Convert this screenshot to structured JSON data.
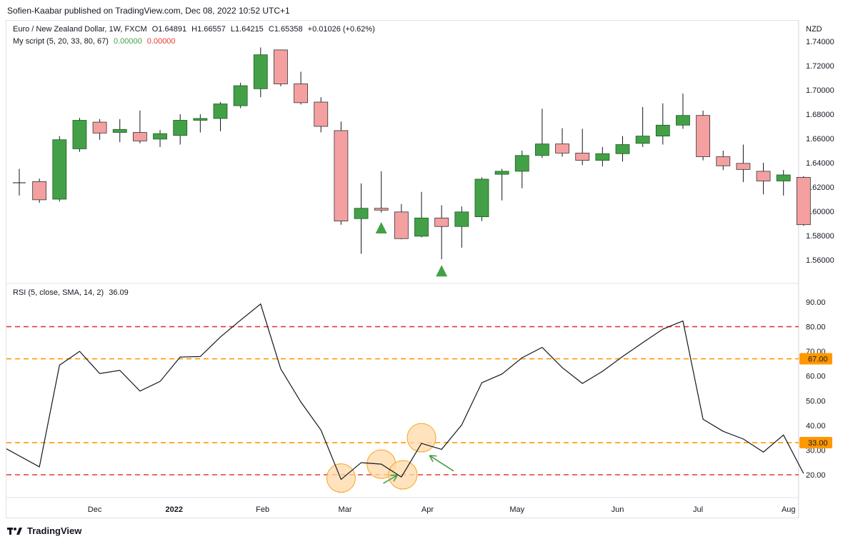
{
  "header": {
    "published": "Sofien-Kaabar published on TradingView.com, Dec 08, 2022 10:52 UTC+1"
  },
  "price_legend": {
    "symbol": "Euro / New Zealand Dollar, 1W, FXCM",
    "open": "O1.64891",
    "high": "H1.66557",
    "low": "L1.64215",
    "close": "C1.65358",
    "change": "+0.01026 (+0.62%)",
    "script": "My script (5, 20, 33, 80, 67)",
    "script_v1": "0.00000",
    "script_v2": "0.00000",
    "currency": "NZD"
  },
  "rsi_legend": {
    "label": "RSI (5, close, SMA, 14, 2)",
    "value": "36.09"
  },
  "footer": {
    "brand": "TradingView"
  },
  "colors": {
    "up": "#43a047",
    "down": "#f4a0a0",
    "up_border": "#1b5e20",
    "down_border": "#333333",
    "signal": "#43a047",
    "level_red": "#e53935",
    "level_orange": "#ff9800",
    "highlight_fill": "#fdd9a8",
    "highlight_stroke": "#f5a623"
  },
  "chart_data": [
    {
      "type": "candlestick",
      "title": "Euro / New Zealand Dollar, 1W, FXCM",
      "y_axis_side": "right",
      "ylim": [
        1.545,
        1.745
      ],
      "yticks": [
        "1.74000",
        "1.72000",
        "1.70000",
        "1.68000",
        "1.66000",
        "1.64000",
        "1.62000",
        "1.60000",
        "1.58000",
        "1.56000"
      ],
      "candles": [
        {
          "o": 1.6235,
          "h": 1.635,
          "l": 1.613,
          "c": 1.6235
        },
        {
          "o": 1.6245,
          "h": 1.627,
          "l": 1.607,
          "c": 1.6095
        },
        {
          "o": 1.61,
          "h": 1.662,
          "l": 1.608,
          "c": 1.659
        },
        {
          "o": 1.6515,
          "h": 1.677,
          "l": 1.649,
          "c": 1.675
        },
        {
          "o": 1.6735,
          "h": 1.676,
          "l": 1.659,
          "c": 1.6645
        },
        {
          "o": 1.665,
          "h": 1.676,
          "l": 1.657,
          "c": 1.6675
        },
        {
          "o": 1.665,
          "h": 1.683,
          "l": 1.656,
          "c": 1.658
        },
        {
          "o": 1.6595,
          "h": 1.667,
          "l": 1.653,
          "c": 1.664
        },
        {
          "o": 1.6625,
          "h": 1.68,
          "l": 1.655,
          "c": 1.675
        },
        {
          "o": 1.675,
          "h": 1.68,
          "l": 1.665,
          "c": 1.6765
        },
        {
          "o": 1.6765,
          "h": 1.69,
          "l": 1.666,
          "c": 1.6885
        },
        {
          "o": 1.687,
          "h": 1.706,
          "l": 1.685,
          "c": 1.7035
        },
        {
          "o": 1.701,
          "h": 1.735,
          "l": 1.694,
          "c": 1.729
        },
        {
          "o": 1.733,
          "h": 1.733,
          "l": 1.703,
          "c": 1.705
        },
        {
          "o": 1.705,
          "h": 1.715,
          "l": 1.688,
          "c": 1.6895
        },
        {
          "o": 1.69,
          "h": 1.694,
          "l": 1.665,
          "c": 1.67
        },
        {
          "o": 1.6665,
          "h": 1.674,
          "l": 1.589,
          "c": 1.592
        },
        {
          "o": 1.594,
          "h": 1.623,
          "l": 1.565,
          "c": 1.6025
        },
        {
          "o": 1.6025,
          "h": 1.633,
          "l": 1.599,
          "c": 1.601
        },
        {
          "o": 1.5995,
          "h": 1.606,
          "l": 1.577,
          "c": 1.5775
        },
        {
          "o": 1.5795,
          "h": 1.616,
          "l": 1.5785,
          "c": 1.5945
        },
        {
          "o": 1.5945,
          "h": 1.605,
          "l": 1.5605,
          "c": 1.5875
        },
        {
          "o": 1.5875,
          "h": 1.604,
          "l": 1.57,
          "c": 1.5995
        },
        {
          "o": 1.5955,
          "h": 1.628,
          "l": 1.592,
          "c": 1.6265
        },
        {
          "o": 1.6305,
          "h": 1.635,
          "l": 1.609,
          "c": 1.633
        },
        {
          "o": 1.633,
          "h": 1.65,
          "l": 1.619,
          "c": 1.646
        },
        {
          "o": 1.646,
          "h": 1.6845,
          "l": 1.644,
          "c": 1.6555
        },
        {
          "o": 1.6555,
          "h": 1.6685,
          "l": 1.645,
          "c": 1.648
        },
        {
          "o": 1.648,
          "h": 1.668,
          "l": 1.638,
          "c": 1.642
        },
        {
          "o": 1.642,
          "h": 1.653,
          "l": 1.637,
          "c": 1.6475
        },
        {
          "o": 1.6475,
          "h": 1.662,
          "l": 1.641,
          "c": 1.655
        },
        {
          "o": 1.656,
          "h": 1.686,
          "l": 1.653,
          "c": 1.662
        },
        {
          "o": 1.662,
          "h": 1.689,
          "l": 1.655,
          "c": 1.671
        },
        {
          "o": 1.671,
          "h": 1.697,
          "l": 1.668,
          "c": 1.679
        },
        {
          "o": 1.679,
          "h": 1.683,
          "l": 1.642,
          "c": 1.645
        },
        {
          "o": 1.645,
          "h": 1.65,
          "l": 1.634,
          "c": 1.6375
        },
        {
          "o": 1.6395,
          "h": 1.655,
          "l": 1.624,
          "c": 1.6345
        },
        {
          "o": 1.633,
          "h": 1.64,
          "l": 1.614,
          "c": 1.625
        },
        {
          "o": 1.625,
          "h": 1.634,
          "l": 1.613,
          "c": 1.63
        },
        {
          "o": 1.628,
          "h": 1.629,
          "l": 1.588,
          "c": 1.589
        }
      ],
      "signals": [
        {
          "index": 18,
          "price": 1.5865
        },
        {
          "index": 21,
          "price": 1.551
        }
      ]
    },
    {
      "type": "line",
      "title": "RSI (5, close, SMA, 14, 2)",
      "ylim": [
        15,
        93
      ],
      "yticks": [
        "90.00",
        "80.00",
        "70.00",
        "60.00",
        "50.00",
        "40.00",
        "30.00",
        "20.00"
      ],
      "series": [
        {
          "values": [
            30.5,
            23.2,
            64.4,
            70.0,
            61.0,
            62.3,
            53.9,
            57.8,
            67.7,
            67.9,
            75.8,
            82.6,
            89.2,
            62.9,
            49.5,
            38.1,
            18.1,
            24.9,
            24.3,
            19.1,
            32.7,
            30.3,
            40.2,
            57.3,
            60.8,
            67.4,
            71.6,
            63.4,
            57.0,
            61.9,
            67.9,
            73.5,
            79.0,
            82.3,
            42.5,
            37.6,
            34.5,
            29.2,
            36.1,
            20.5
          ]
        }
      ],
      "levels": [
        {
          "value": 80,
          "style": "red-dashed"
        },
        {
          "value": 67,
          "style": "orange-dashed",
          "label": "67.00"
        },
        {
          "value": 33,
          "style": "orange-dashed",
          "label": "33.00"
        },
        {
          "value": 20,
          "style": "red-dashed"
        }
      ],
      "highlights": [
        16,
        18,
        19,
        20
      ],
      "arrows": [
        {
          "from": {
            "index": 18.1,
            "value": 16.5
          },
          "to": {
            "index": 18.8,
            "value": 19.8
          }
        },
        {
          "from": {
            "index": 21.6,
            "value": 21.5
          },
          "to": {
            "index": 20.4,
            "value": 27.8
          }
        }
      ]
    }
  ],
  "x_axis": {
    "labels": [
      {
        "text": "Dec",
        "index": 3.75,
        "bold": false
      },
      {
        "text": "2022",
        "index": 7.7,
        "bold": true
      },
      {
        "text": "Feb",
        "index": 12.1,
        "bold": false
      },
      {
        "text": "Mar",
        "index": 16.2,
        "bold": false
      },
      {
        "text": "Apr",
        "index": 20.3,
        "bold": false
      },
      {
        "text": "May",
        "index": 24.75,
        "bold": false
      },
      {
        "text": "Jun",
        "index": 29.75,
        "bold": false
      },
      {
        "text": "Jul",
        "index": 33.75,
        "bold": false
      },
      {
        "text": "Aug",
        "index": 38.25,
        "bold": false
      }
    ]
  }
}
